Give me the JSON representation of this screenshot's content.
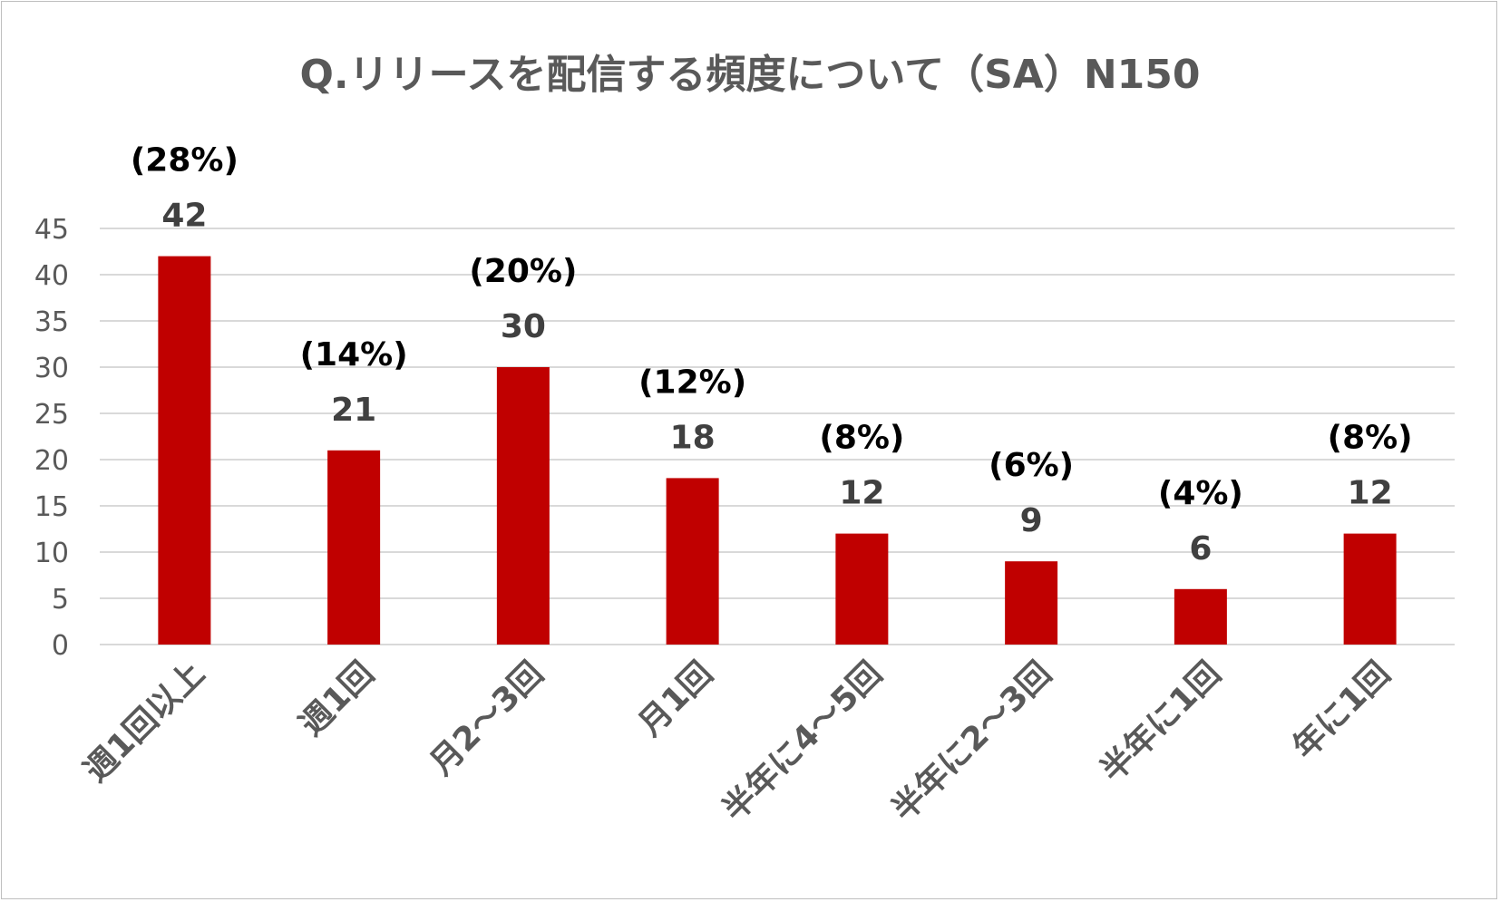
{
  "chart_data": {
    "type": "bar",
    "title": "Q.リリースを配信する頻度について（SA）N150",
    "xlabel": "",
    "ylabel": "",
    "ylim": [
      0,
      45
    ],
    "yticks": [
      0,
      5,
      10,
      15,
      20,
      25,
      30,
      35,
      40,
      45
    ],
    "categories": [
      "週1回以上",
      "週1回",
      "月2～3回",
      "月1回",
      "半年に4～5回",
      "半年に2～3回",
      "半年に1回",
      "年に1回"
    ],
    "values": [
      42,
      21,
      30,
      18,
      12,
      9,
      6,
      12
    ],
    "percent_labels": [
      "(28%)",
      "(14%)",
      "(20%)",
      "(12%)",
      "(8%)",
      "(6%)",
      "(4%)",
      "(8%)"
    ],
    "grid": true,
    "legend": "none",
    "colors": {
      "bar": "#c00000",
      "grid": "#d9d9d9",
      "title": "#595959",
      "tick": "#595959",
      "value_label": "#404040",
      "percent_label": "#000000"
    }
  }
}
